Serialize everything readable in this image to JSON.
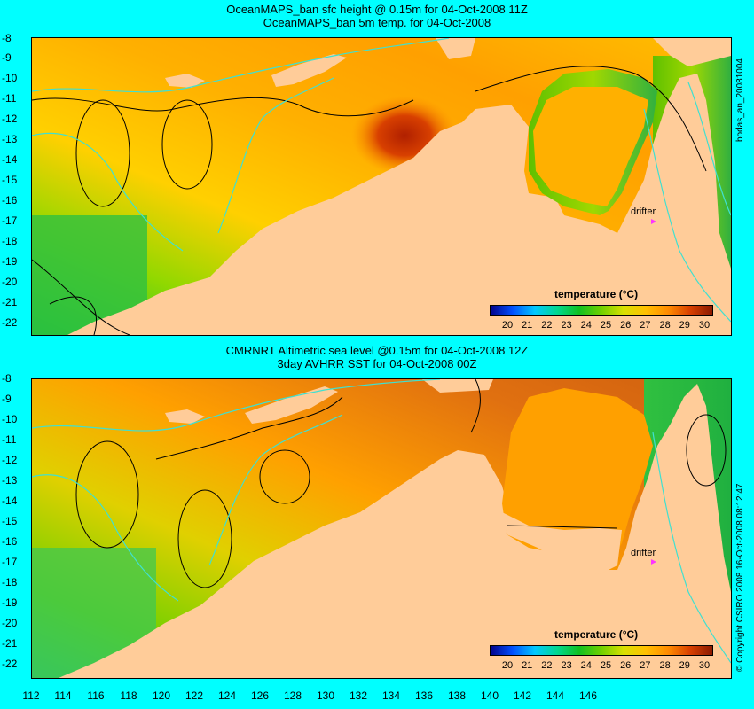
{
  "top": {
    "title_line1": "OceanMAPS_ban sfc height @ 0.15m for 04-Oct-2008 11Z",
    "title_line2": "OceanMAPS_ban 5m temp. for 04-Oct-2008",
    "colorbar_title": "temperature (°C)",
    "drifter_label": "drifter",
    "side_label": "bodas_an_20081004"
  },
  "bottom": {
    "title_line1": "CMRNRT Altimetric sea level  @0.15m  for 04-Oct-2008 12Z",
    "title_line2": "3day AVHRR SST for 04-Oct-2008 00Z",
    "colorbar_title": "temperature (°C)",
    "drifter_label": "drifter",
    "side_label": "© Copyright CSIRO 2008  16-Oct-2008 08:12:47"
  },
  "map": {
    "lat_ticks": [
      "-8",
      "-9",
      "-10",
      "-11",
      "-12",
      "-13",
      "-14",
      "-15",
      "-16",
      "-17",
      "-18",
      "-19",
      "-20",
      "-21",
      "-22"
    ],
    "lon_ticks": [
      "112",
      "114",
      "116",
      "118",
      "120",
      "122",
      "124",
      "126",
      "128",
      "130",
      "132",
      "134",
      "136",
      "138",
      "140",
      "142",
      "144",
      "146"
    ]
  },
  "colorbar": {
    "ticks": [
      "20",
      "21",
      "22",
      "23",
      "24",
      "25",
      "26",
      "27",
      "28",
      "29",
      "30"
    ],
    "colors": [
      "#00008b",
      "#0050ff",
      "#00c8ff",
      "#00d890",
      "#10c020",
      "#70d000",
      "#d8e000",
      "#ffc000",
      "#ff8c00",
      "#d84000",
      "#8b1a00"
    ]
  },
  "colors": {
    "background": "#00ffff",
    "land": "#ffcc99",
    "contour_cyan": "#40e0d0",
    "contour_black": "#000000",
    "drifter": "#ff33ff"
  }
}
